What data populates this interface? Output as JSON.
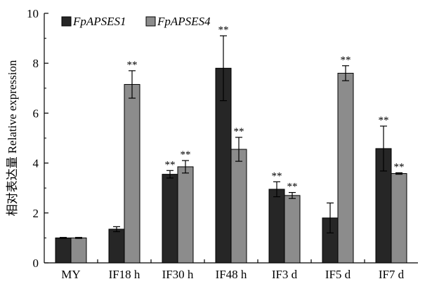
{
  "chart_data": {
    "type": "bar",
    "ylabel": "相对表达量 Relative expression",
    "xlabel": "",
    "ylim": [
      0,
      10
    ],
    "yticks": [
      "0",
      "2",
      "4",
      "6",
      "8",
      "10"
    ],
    "categories": [
      "MY",
      "IF18 h",
      "IF30 h",
      "IF48 h",
      "IF3 d",
      "IF5 d",
      "IF7 d"
    ],
    "legend_position": "top-left",
    "grid": false,
    "series": [
      {
        "name": "FpAPSES1",
        "color": "#262626",
        "values": [
          1.0,
          1.35,
          3.55,
          7.8,
          2.95,
          1.8,
          4.58
        ],
        "errors": [
          0.02,
          0.1,
          0.15,
          1.3,
          0.3,
          0.6,
          0.9
        ],
        "significance": [
          "",
          "",
          "**",
          "**",
          "**",
          "",
          "**"
        ]
      },
      {
        "name": "FpAPSES4",
        "color": "#8c8c8c",
        "values": [
          1.0,
          7.15,
          3.85,
          4.55,
          2.7,
          7.6,
          3.58
        ],
        "errors": [
          0.02,
          0.55,
          0.25,
          0.48,
          0.12,
          0.3,
          0.03
        ],
        "significance": [
          "",
          "**",
          "**",
          "**",
          "**",
          "**",
          "**"
        ]
      }
    ]
  }
}
